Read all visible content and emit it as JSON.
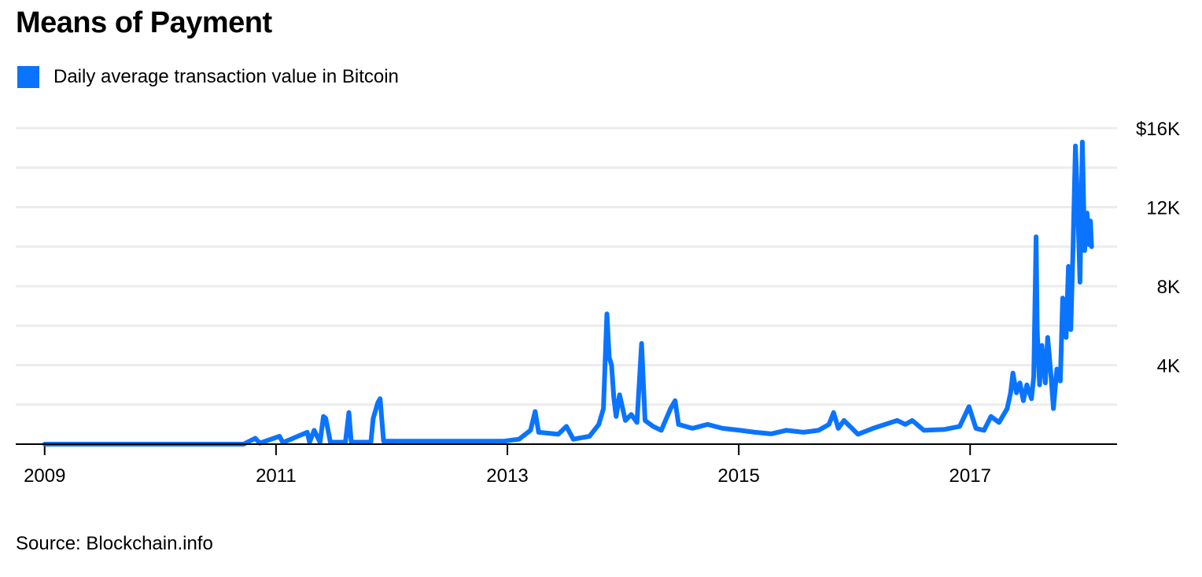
{
  "title": "Means of Payment",
  "source": "Source: Blockchain.info",
  "colors": {
    "series": "#0a74ff",
    "grid": "#ececec",
    "axis": "#000000"
  },
  "chart_data": {
    "type": "line",
    "title": "Means of Payment",
    "xlabel": "",
    "ylabel": "",
    "xlim": [
      2008.75,
      2018.27
    ],
    "ylim": [
      0,
      16000
    ],
    "grid": true,
    "legend_position": "top-left",
    "x_ticks": [
      {
        "value": 2009,
        "label": "2009"
      },
      {
        "value": 2011,
        "label": "2011"
      },
      {
        "value": 2013,
        "label": "2013"
      },
      {
        "value": 2015,
        "label": "2015"
      },
      {
        "value": 2017,
        "label": "2017"
      }
    ],
    "y_ticks": [
      {
        "value": 4000,
        "label": "4K"
      },
      {
        "value": 8000,
        "label": "8K"
      },
      {
        "value": 12000,
        "label": "12K"
      },
      {
        "value": 16000,
        "label": "$16K"
      }
    ],
    "y_gridlines": [
      2000,
      4000,
      6000,
      8000,
      10000,
      12000,
      14000,
      16000
    ],
    "series": [
      {
        "name": "Daily average transaction value in Bitcoin",
        "x": [
          2009.0,
          2010.72,
          2010.82,
          2010.86,
          2011.03,
          2011.06,
          2011.27,
          2011.29,
          2011.33,
          2011.38,
          2011.41,
          2011.43,
          2011.47,
          2011.6,
          2011.63,
          2011.65,
          2011.82,
          2011.84,
          2011.88,
          2011.9,
          2011.93,
          2012.29,
          2012.97,
          2013.1,
          2013.2,
          2013.24,
          2013.27,
          2013.44,
          2013.51,
          2013.57,
          2013.71,
          2013.79,
          2013.83,
          2013.86,
          2013.88,
          2013.9,
          2013.92,
          2013.94,
          2013.97,
          2014.02,
          2014.07,
          2014.12,
          2014.16,
          2014.19,
          2014.26,
          2014.33,
          2014.41,
          2014.45,
          2014.48,
          2014.6,
          2014.73,
          2014.86,
          2015.01,
          2015.14,
          2015.28,
          2015.41,
          2015.56,
          2015.69,
          2015.78,
          2015.82,
          2015.86,
          2015.91,
          2016.03,
          2016.16,
          2016.37,
          2016.44,
          2016.5,
          2016.6,
          2016.78,
          2016.91,
          2016.99,
          2017.05,
          2017.12,
          2017.18,
          2017.25,
          2017.32,
          2017.35,
          2017.37,
          2017.4,
          2017.43,
          2017.46,
          2017.49,
          2017.53,
          2017.55,
          2017.57,
          2017.58,
          2017.6,
          2017.62,
          2017.65,
          2017.67,
          2017.7,
          2017.72,
          2017.75,
          2017.78,
          2017.8,
          2017.83,
          2017.85,
          2017.87,
          2017.89,
          2017.91,
          2017.93,
          2017.95,
          2017.97,
          2017.99,
          2018.01,
          2018.03,
          2018.04,
          2018.05
        ],
        "values": [
          0,
          0,
          300,
          50,
          400,
          80,
          600,
          100,
          700,
          100,
          1400,
          1300,
          100,
          100,
          1600,
          100,
          100,
          1300,
          2100,
          2300,
          150,
          150,
          150,
          250,
          700,
          1650,
          600,
          500,
          900,
          250,
          400,
          1000,
          1800,
          6600,
          4400,
          4000,
          2350,
          1400,
          2500,
          1200,
          1500,
          1100,
          5100,
          1200,
          900,
          700,
          1800,
          2200,
          1000,
          800,
          1000,
          800,
          700,
          600,
          520,
          700,
          600,
          700,
          1000,
          1600,
          800,
          1200,
          500,
          800,
          1200,
          1000,
          1200,
          700,
          750,
          900,
          1900,
          800,
          700,
          1400,
          1100,
          1800,
          2600,
          3600,
          2600,
          3100,
          2200,
          3000,
          2300,
          3400,
          10500,
          5800,
          3000,
          5000,
          3100,
          5400,
          3400,
          1800,
          3800,
          3200,
          7400,
          5400,
          9000,
          5800,
          10000,
          15100,
          12100,
          8200,
          15300,
          9800,
          11700,
          10100,
          11300,
          10000
        ]
      }
    ]
  }
}
